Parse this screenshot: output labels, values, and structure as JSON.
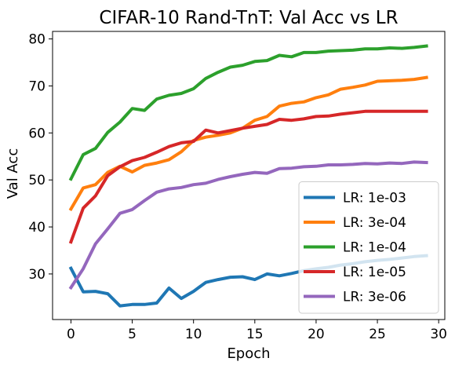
{
  "chart_data": {
    "type": "line",
    "title": "CIFAR-10 Rand-TnT: Val Acc vs LR",
    "xlabel": "Epoch",
    "ylabel": "Val Acc",
    "xlim": [
      -1.5,
      30.5
    ],
    "ylim": [
      20.3,
      81.6
    ],
    "xticks": [
      0,
      5,
      10,
      15,
      20,
      25,
      30
    ],
    "yticks": [
      30,
      40,
      50,
      60,
      70,
      80
    ],
    "grid": false,
    "legend": "bottom-right",
    "x": [
      0,
      1,
      2,
      3,
      4,
      5,
      6,
      7,
      8,
      9,
      10,
      11,
      12,
      13,
      14,
      15,
      16,
      17,
      18,
      19,
      20,
      21,
      22,
      23,
      24,
      25,
      26,
      27,
      28,
      29
    ],
    "series": [
      {
        "name": "LR: 1e-03",
        "color": "#1f77b4",
        "values": [
          31.2,
          26.2,
          26.3,
          25.8,
          23.2,
          23.5,
          23.5,
          23.8,
          27.0,
          24.8,
          26.3,
          28.2,
          28.8,
          29.3,
          29.4,
          28.8,
          30.0,
          29.6,
          30.1,
          30.7,
          31.1,
          31.4,
          31.9,
          32.2,
          32.6,
          32.9,
          33.1,
          33.4,
          33.7,
          33.9
        ]
      },
      {
        "name": "LR: 3e-04",
        "color": "#ff7f0e",
        "values": [
          43.8,
          48.3,
          49.0,
          51.6,
          52.9,
          51.7,
          53.1,
          53.6,
          54.3,
          56.0,
          58.4,
          59.1,
          59.5,
          60.0,
          61.0,
          62.7,
          63.5,
          65.7,
          66.3,
          66.6,
          67.5,
          68.1,
          69.3,
          69.7,
          70.2,
          71.0,
          71.1,
          71.2,
          71.4,
          71.8
        ]
      },
      {
        "name": "LR: 1e-04",
        "color": "#2ca02c",
        "values": [
          50.2,
          55.4,
          56.7,
          60.1,
          62.3,
          65.2,
          64.8,
          67.2,
          68.0,
          68.4,
          69.4,
          71.6,
          72.9,
          74.0,
          74.4,
          75.2,
          75.4,
          76.5,
          76.2,
          77.1,
          77.1,
          77.4,
          77.5,
          77.6,
          77.9,
          77.9,
          78.1,
          78.0,
          78.2,
          78.5
        ]
      },
      {
        "name": "LR: 1e-05",
        "color": "#d62728",
        "values": [
          36.8,
          44.0,
          46.6,
          50.9,
          52.8,
          54.1,
          54.8,
          55.9,
          57.1,
          57.9,
          58.2,
          60.6,
          60.0,
          60.5,
          61.0,
          61.4,
          61.8,
          62.9,
          62.7,
          63.0,
          63.5,
          63.6,
          64.0,
          64.3,
          64.6,
          64.6,
          64.6,
          64.6,
          64.6,
          64.6
        ]
      },
      {
        "name": "LR: 3e-06",
        "color": "#9467bd",
        "values": [
          27.1,
          31.1,
          36.4,
          39.6,
          42.9,
          43.7,
          45.6,
          47.4,
          48.1,
          48.4,
          49.0,
          49.3,
          50.1,
          50.7,
          51.2,
          51.6,
          51.4,
          52.4,
          52.5,
          52.8,
          52.9,
          53.2,
          53.2,
          53.3,
          53.5,
          53.4,
          53.6,
          53.5,
          53.8,
          53.7
        ]
      }
    ]
  }
}
